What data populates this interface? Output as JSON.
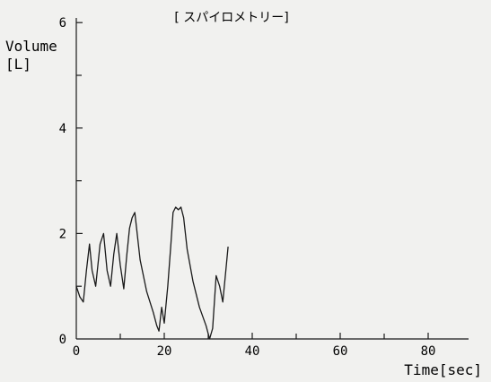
{
  "chart_data": {
    "type": "line",
    "title": "[ スパイロメトリー]",
    "ylabel_line1": "Volume",
    "ylabel_line2": "[L]",
    "xlabel": "Time[sec]",
    "xlim": [
      0,
      88
    ],
    "ylim": [
      0,
      6
    ],
    "xticks_labeled": [
      0,
      20,
      40,
      60,
      80
    ],
    "xticks_minor": [
      10,
      30,
      50,
      70
    ],
    "yticks_labeled": [
      0,
      2,
      4,
      6
    ],
    "yticks_minor": [
      1,
      3,
      5
    ],
    "grid": false,
    "series": [
      {
        "x": [
          0.0,
          0.8,
          1.6,
          2.3,
          3.0,
          3.6,
          4.4,
          5.4,
          6.2,
          7.0,
          7.8,
          8.5,
          9.2,
          10.0,
          10.8,
          11.5,
          12.1,
          12.7,
          13.3,
          14.5,
          16.0,
          17.5,
          18.3,
          18.8,
          19.4,
          20.0,
          20.8,
          21.5,
          22.0,
          22.6,
          23.2,
          23.8,
          24.4,
          25.2,
          26.5,
          28.0,
          29.5,
          30.3,
          31.0,
          31.8,
          32.6,
          33.3,
          34.0,
          34.5
        ],
        "y": [
          1.0,
          0.8,
          0.7,
          1.3,
          1.8,
          1.3,
          1.0,
          1.8,
          2.0,
          1.3,
          1.0,
          1.6,
          2.0,
          1.4,
          0.95,
          1.6,
          2.1,
          2.3,
          2.4,
          1.5,
          0.9,
          0.5,
          0.25,
          0.15,
          0.6,
          0.3,
          1.0,
          1.8,
          2.4,
          2.5,
          2.45,
          2.5,
          2.3,
          1.7,
          1.1,
          0.6,
          0.25,
          0.0,
          0.2,
          1.2,
          1.0,
          0.7,
          1.3,
          1.75
        ]
      }
    ]
  }
}
